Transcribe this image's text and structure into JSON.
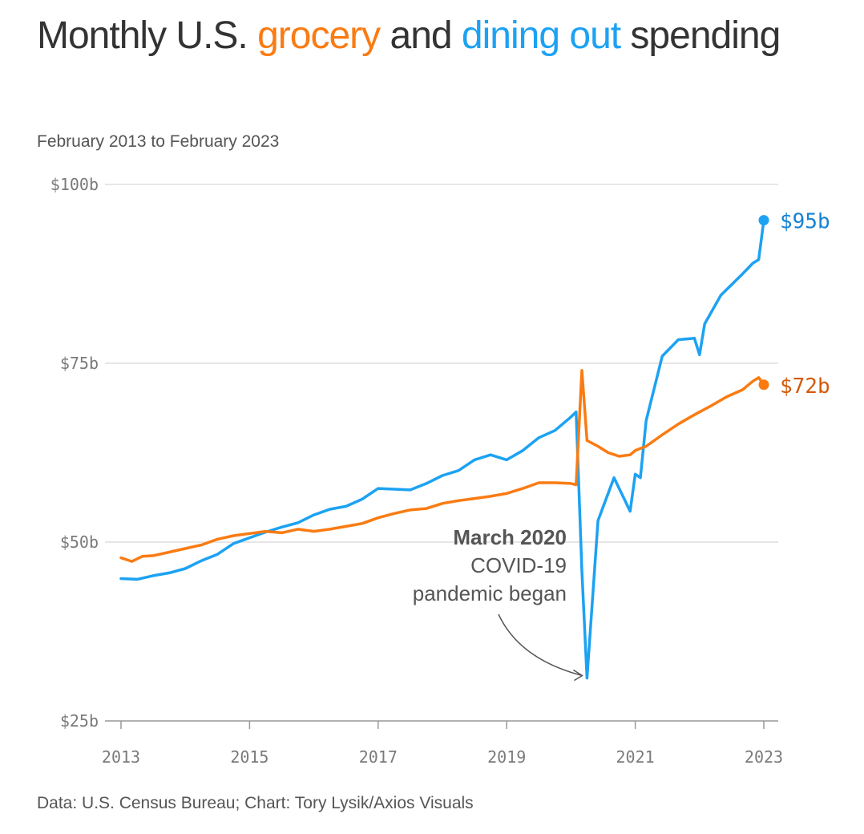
{
  "title": {
    "part1": "Monthly U.S. ",
    "grocery": "grocery",
    "part2": " and ",
    "dining": "dining out",
    "part3": " spending"
  },
  "subtitle": "February 2013 to February 2023",
  "footer": "Data: U.S. Census Bureau; Chart: Tory Lysik/Axios Visuals",
  "colors": {
    "grocery": "#FA7B12",
    "dining": "#1CA2F3",
    "dining_label": "#1582D4",
    "grocery_label": "#D35A0B",
    "grid": "#dddddd"
  },
  "chart_data": {
    "type": "line",
    "title": "Monthly U.S. grocery and dining out spending",
    "subtitle": "February 2013 to February 2023",
    "xlabel": "",
    "ylabel": "",
    "xlim": [
      2013,
      2023
    ],
    "ylim": [
      25,
      100
    ],
    "x_ticks": [
      {
        "value": 2013,
        "label": "2013"
      },
      {
        "value": 2015,
        "label": "2015"
      },
      {
        "value": 2017,
        "label": "2017"
      },
      {
        "value": 2019,
        "label": "2019"
      },
      {
        "value": 2021,
        "label": "2021"
      },
      {
        "value": 2023,
        "label": "2023"
      }
    ],
    "y_ticks": [
      {
        "value": 25,
        "label": "$25b"
      },
      {
        "value": 50,
        "label": "$50b"
      },
      {
        "value": 75,
        "label": "$75b"
      },
      {
        "value": 100,
        "label": "$100b"
      }
    ],
    "grid": true,
    "series": [
      {
        "name": "dining out",
        "color": "#1CA2F3",
        "end_label": "$95b",
        "points": [
          [
            2013.0,
            44.9
          ],
          [
            2013.25,
            44.8
          ],
          [
            2013.5,
            45.3
          ],
          [
            2013.75,
            45.7
          ],
          [
            2014.0,
            46.3
          ],
          [
            2014.25,
            47.4
          ],
          [
            2014.5,
            48.3
          ],
          [
            2014.75,
            49.8
          ],
          [
            2015.0,
            50.6
          ],
          [
            2015.25,
            51.4
          ],
          [
            2015.5,
            52.1
          ],
          [
            2015.75,
            52.7
          ],
          [
            2016.0,
            53.8
          ],
          [
            2016.25,
            54.6
          ],
          [
            2016.5,
            55.0
          ],
          [
            2016.75,
            56.0
          ],
          [
            2017.0,
            57.5
          ],
          [
            2017.25,
            57.4
          ],
          [
            2017.5,
            57.3
          ],
          [
            2017.75,
            58.2
          ],
          [
            2018.0,
            59.3
          ],
          [
            2018.25,
            60.0
          ],
          [
            2018.5,
            61.5
          ],
          [
            2018.75,
            62.2
          ],
          [
            2019.0,
            61.5
          ],
          [
            2019.25,
            62.8
          ],
          [
            2019.5,
            64.6
          ],
          [
            2019.75,
            65.6
          ],
          [
            2020.0,
            67.5
          ],
          [
            2020.08,
            68.2
          ],
          [
            2020.17,
            46.0
          ],
          [
            2020.25,
            31.0
          ],
          [
            2020.42,
            53.0
          ],
          [
            2020.67,
            59.0
          ],
          [
            2020.83,
            56.0
          ],
          [
            2020.92,
            54.3
          ],
          [
            2021.0,
            59.5
          ],
          [
            2021.08,
            59.0
          ],
          [
            2021.17,
            67.0
          ],
          [
            2021.42,
            76.0
          ],
          [
            2021.67,
            78.3
          ],
          [
            2021.92,
            78.5
          ],
          [
            2022.0,
            76.2
          ],
          [
            2022.08,
            80.5
          ],
          [
            2022.33,
            84.5
          ],
          [
            2022.5,
            86.0
          ],
          [
            2022.67,
            87.5
          ],
          [
            2022.83,
            89.0
          ],
          [
            2022.92,
            89.5
          ],
          [
            2023.0,
            95.0
          ]
        ]
      },
      {
        "name": "grocery",
        "color": "#FA7B12",
        "end_label": "$72b",
        "points": [
          [
            2013.0,
            47.8
          ],
          [
            2013.17,
            47.3
          ],
          [
            2013.33,
            48.0
          ],
          [
            2013.5,
            48.1
          ],
          [
            2013.75,
            48.6
          ],
          [
            2014.0,
            49.1
          ],
          [
            2014.25,
            49.6
          ],
          [
            2014.5,
            50.4
          ],
          [
            2014.75,
            50.9
          ],
          [
            2015.0,
            51.2
          ],
          [
            2015.25,
            51.5
          ],
          [
            2015.5,
            51.3
          ],
          [
            2015.75,
            51.8
          ],
          [
            2016.0,
            51.5
          ],
          [
            2016.25,
            51.8
          ],
          [
            2016.5,
            52.2
          ],
          [
            2016.75,
            52.6
          ],
          [
            2017.0,
            53.4
          ],
          [
            2017.25,
            54.0
          ],
          [
            2017.5,
            54.5
          ],
          [
            2017.75,
            54.7
          ],
          [
            2018.0,
            55.4
          ],
          [
            2018.25,
            55.8
          ],
          [
            2018.5,
            56.1
          ],
          [
            2018.75,
            56.4
          ],
          [
            2019.0,
            56.8
          ],
          [
            2019.25,
            57.5
          ],
          [
            2019.5,
            58.3
          ],
          [
            2019.75,
            58.3
          ],
          [
            2020.0,
            58.2
          ],
          [
            2020.08,
            58.0
          ],
          [
            2020.17,
            74.0
          ],
          [
            2020.25,
            64.2
          ],
          [
            2020.42,
            63.4
          ],
          [
            2020.58,
            62.5
          ],
          [
            2020.75,
            62.0
          ],
          [
            2020.92,
            62.2
          ],
          [
            2021.0,
            62.8
          ],
          [
            2021.17,
            63.4
          ],
          [
            2021.42,
            65.0
          ],
          [
            2021.67,
            66.5
          ],
          [
            2021.92,
            67.8
          ],
          [
            2022.17,
            69.0
          ],
          [
            2022.42,
            70.3
          ],
          [
            2022.67,
            71.3
          ],
          [
            2022.83,
            72.5
          ],
          [
            2022.92,
            73.0
          ],
          [
            2023.0,
            72.0
          ]
        ]
      }
    ],
    "annotation": {
      "lines": [
        "March 2020",
        "COVID-19",
        "pandemic began"
      ],
      "points_to": [
        2020.25,
        31.0
      ]
    }
  }
}
